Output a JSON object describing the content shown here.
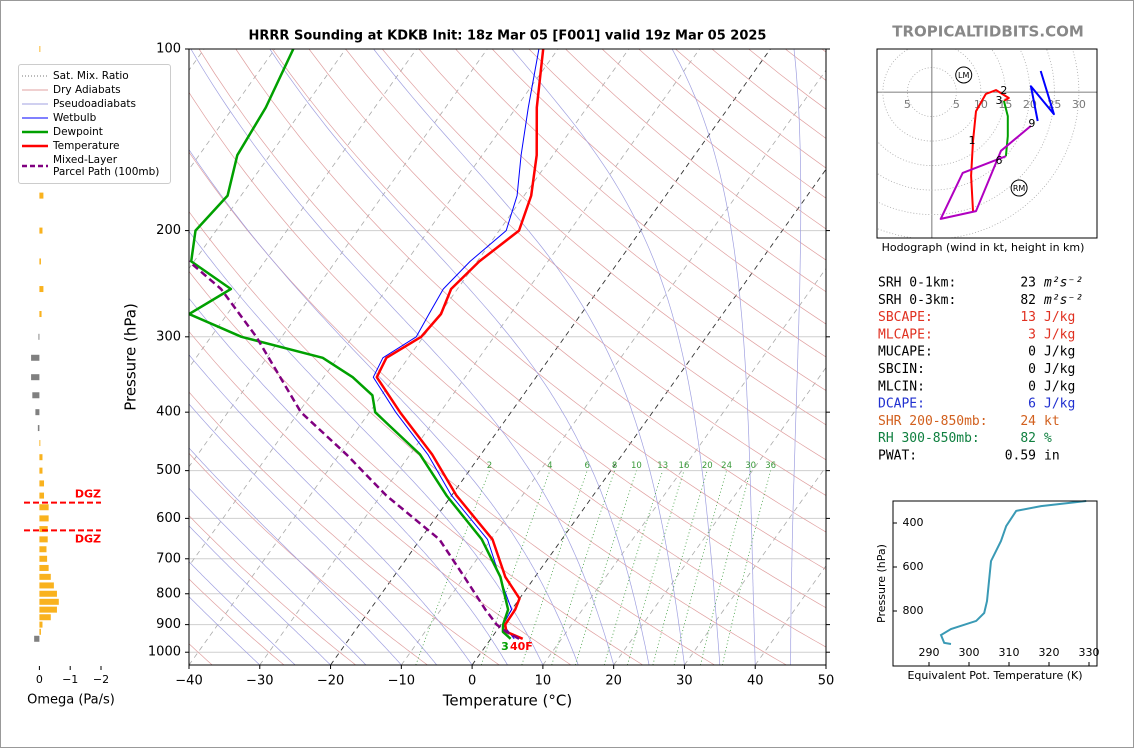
{
  "chart_data": [
    {
      "type": "skewt",
      "title": "HRRR Sounding at KDKB Init: 18z Mar 05 [F001] valid 19z Mar 05 2025",
      "xlabel": "Temperature (°C)",
      "ylabel": "Pressure (hPa)",
      "xlim": [
        -40,
        50
      ],
      "xticks": [
        {
          "value": -40,
          "label": "−40"
        },
        {
          "value": -30,
          "label": "−30"
        },
        {
          "value": -20,
          "label": "−20"
        },
        {
          "value": -10,
          "label": "−10"
        },
        0,
        10,
        20,
        30,
        40,
        50
      ],
      "ylim": [
        1050,
        100
      ],
      "yticks": [
        100,
        200,
        300,
        400,
        500,
        600,
        700,
        800,
        900,
        1000
      ],
      "log_y": true,
      "grid": true,
      "background_lines": [
        {
          "name": "Sat. Mix. Ratio",
          "color": "#3a9a3a",
          "values": [
            2,
            4,
            6,
            8,
            10,
            13,
            16,
            20,
            24,
            30,
            36
          ]
        },
        {
          "name": "Dry Adiabats",
          "color": "#e0a0a0"
        },
        {
          "name": "Pseudoadiabats",
          "color": "#a0a0e0"
        }
      ],
      "series": [
        {
          "name": "Wetbulb",
          "color": "#0000ff",
          "linewidth": 1,
          "dashed": false,
          "pressure": [
            950,
            900,
            850,
            750,
            650,
            550,
            470,
            400,
            350,
            325,
            300,
            275,
            250,
            225,
            200,
            175,
            150,
            125,
            100
          ],
          "values": [
            3.3,
            0.3,
            0.0,
            -5.0,
            -10.5,
            -20.0,
            -27.5,
            -36.3,
            -43.0,
            -43.6,
            -41.0,
            -41.5,
            -42.0,
            -41.0,
            -39.0,
            -41.0,
            -44.5,
            -48.3,
            -52.7
          ]
        },
        {
          "name": "Dewpoint",
          "color": "#00a000",
          "linewidth": 2.5,
          "dashed": false,
          "pressure": [
            950,
            925,
            900,
            850,
            750,
            650,
            550,
            470,
            420,
            400,
            375,
            350,
            325,
            300,
            275,
            250,
            225,
            200,
            175,
            150,
            125,
            100
          ],
          "values": [
            2.8,
            1.0,
            0.3,
            -0.5,
            -4.9,
            -11.3,
            -20.7,
            -28.6,
            -36.0,
            -39.2,
            -41.3,
            -45.9,
            -52.1,
            -65.7,
            -75.4,
            -72.0,
            -80.4,
            -82.9,
            -81.9,
            -84.6,
            -85.4,
            -87.4
          ]
        },
        {
          "name": "Temperature",
          "color": "#ff0000",
          "linewidth": 2.5,
          "dashed": false,
          "pressure": [
            950,
            925,
            900,
            850,
            815,
            750,
            650,
            550,
            470,
            400,
            350,
            325,
            300,
            275,
            250,
            225,
            200,
            175,
            150,
            125,
            100
          ],
          "values": [
            4.5,
            1.5,
            0.6,
            0.5,
            0.0,
            -4.2,
            -9.8,
            -19.3,
            -26.9,
            -35.7,
            -42.5,
            -43.1,
            -40.3,
            -39.8,
            -40.9,
            -39.7,
            -37.2,
            -39.0,
            -42.3,
            -47.1,
            -52.1
          ]
        },
        {
          "name": "Mixed-Layer\nParcel Path (100mb)",
          "color": "#800080",
          "linewidth": 2.5,
          "dashed": true,
          "pressure": [
            950,
            925,
            900,
            850,
            750,
            650,
            550,
            470,
            400,
            300,
            250,
            225
          ],
          "values": [
            4.0,
            1.5,
            -0.6,
            -3.7,
            -10.0,
            -17.3,
            -29.2,
            -39.0,
            -49.7,
            -63.6,
            -73.4,
            -80.7
          ]
        }
      ],
      "annotations": [
        {
          "text": "3",
          "color": "#00a000"
        },
        {
          "text": "40F",
          "color": "#ff0000"
        }
      ]
    },
    {
      "type": "omega-bar",
      "xlabel": "Omega (Pa/s)",
      "xlim": [
        0.5,
        -2
      ],
      "xticks": [
        0,
        {
          "value": -1,
          "label": "−1"
        },
        {
          "value": -2,
          "label": "−2"
        }
      ],
      "ylim": [
        1050,
        100
      ],
      "log_y": true,
      "positive_color": "#808080",
      "negative_color": "#f9b21e",
      "pressure": [
        100,
        125,
        150,
        175,
        200,
        225,
        250,
        275,
        300,
        325,
        350,
        375,
        400,
        425,
        450,
        475,
        500,
        525,
        550,
        575,
        600,
        625,
        650,
        675,
        700,
        725,
        750,
        775,
        800,
        825,
        850,
        875,
        900,
        925,
        950
      ],
      "values": [
        -0.03,
        -0.1,
        -0.1,
        -0.13,
        -0.1,
        -0.05,
        -0.13,
        -0.07,
        0.03,
        0.27,
        0.27,
        0.23,
        0.13,
        0.05,
        -0.03,
        -0.1,
        -0.1,
        -0.15,
        -0.15,
        -0.3,
        -0.3,
        -0.27,
        -0.27,
        -0.23,
        -0.25,
        -0.3,
        -0.37,
        -0.47,
        -0.57,
        -0.63,
        -0.57,
        -0.37,
        -0.1,
        -0.05,
        0.17
      ],
      "annotation_color": "#ff0000",
      "annotations": [
        {
          "text": "DGZ",
          "pressure": 565
        },
        {
          "text": "DGZ",
          "pressure": 628
        }
      ]
    },
    {
      "type": "hodograph",
      "xlabel": "Hodograph (wind in kt, height in km)",
      "xlim": [
        -11.2,
        33.7
      ],
      "ylim": [
        -29.8,
        8.8
      ],
      "xticks": [
        {
          "value": -5,
          "label": "5"
        },
        5,
        10,
        15,
        20,
        25,
        30
      ],
      "series": [
        {
          "color": "#ff0000",
          "u": [
            8.4,
            8.0,
            8.4,
            9.0,
            11.0,
            13.1,
            15.7,
            14.7
          ],
          "v": [
            -24.3,
            -17.1,
            -10.0,
            -3.9,
            -0.4,
            0.4,
            -1.2,
            -1.8
          ]
        },
        {
          "color": "#00a000",
          "u": [
            14.7,
            15.5,
            15.5,
            15.1
          ],
          "v": [
            -1.8,
            -4.9,
            -9.0,
            -13.1
          ]
        },
        {
          "color": "#b000c0",
          "u": [
            15.1,
            6.3,
            1.8,
            9.0,
            14.1,
            20.2
          ],
          "v": [
            -13.1,
            -16.5,
            -25.9,
            -24.3,
            -12.0,
            -6.9
          ]
        },
        {
          "color": "#0000ff",
          "u": [
            21.6,
            20.2,
            24.9,
            22.2
          ],
          "v": [
            -5.9,
            1.2,
            -4.5,
            4.3
          ]
        }
      ],
      "height_marks": {
        "labels": [
          1,
          2,
          3,
          6,
          9
        ],
        "u": [
          8.2,
          14.7,
          13.7,
          13.7,
          20.4
        ],
        "v": [
          -10.0,
          0.2,
          -1.8,
          -14.1,
          -6.5
        ]
      },
      "storm_motion": {
        "labels": [
          "LM",
          "RM"
        ],
        "u": [
          6.5,
          17.8
        ],
        "v": [
          3.5,
          -19.6
        ]
      }
    },
    {
      "type": "line",
      "xlabel": "Equivalent Pot. Temperature (K)",
      "ylabel": "Pressure (hPa)",
      "xlim": [
        281,
        332
      ],
      "xticks": [
        290,
        300,
        310,
        320,
        330
      ],
      "ylim": [
        1050,
        300
      ],
      "yticks": [
        400,
        600,
        800
      ],
      "color": "#3a9ab5",
      "x": [
        329.3,
        318,
        311.8,
        309.3,
        308,
        305.5,
        305,
        304.5,
        303.8,
        301.8,
        295.5,
        293,
        293.8,
        295.5
      ],
      "values": [
        300,
        323,
        345,
        414,
        482,
        573,
        664,
        755,
        809,
        845,
        882,
        909,
        945,
        950
      ]
    }
  ],
  "watermark": "TROPICALTIDBITS.COM",
  "stats": {
    "rows": [
      {
        "label": "SRH 0-1km:",
        "value": 23,
        "unit": "m²s⁻²",
        "color": "#000000"
      },
      {
        "label": "SRH 0-3km:",
        "value": 82,
        "unit": "m²s⁻²",
        "color": "#000000"
      },
      {
        "label": "SBCAPE:",
        "value": 13,
        "unit": "J/kg",
        "color": "#e03020"
      },
      {
        "label": "MLCAPE:",
        "value": 3,
        "unit": "J/kg",
        "color": "#e03020"
      },
      {
        "label": "MUCAPE:",
        "value": 0,
        "unit": "J/kg",
        "color": "#000000"
      },
      {
        "label": "SBCIN:",
        "value": 0,
        "unit": "J/kg",
        "color": "#000000"
      },
      {
        "label": "MLCIN:",
        "value": 0,
        "unit": "J/kg",
        "color": "#000000"
      },
      {
        "label": "DCAPE:",
        "value": 6,
        "unit": "J/kg",
        "color": "#2030d0"
      },
      {
        "label": "SHR 200-850mb:",
        "value": 24,
        "unit": "kt",
        "color": "#d2601e"
      },
      {
        "label": "RH 300-850mb:",
        "value": 82,
        "unit": "%",
        "color": "#108040"
      },
      {
        "label": "PWAT:",
        "value": 0.59,
        "unit": "in",
        "color": "#000000"
      }
    ]
  }
}
